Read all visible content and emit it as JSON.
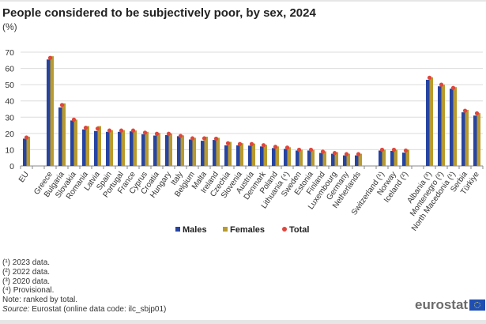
{
  "chart_data": {
    "type": "bar",
    "title": "People considered to be subjectively poor, by sex, 2024",
    "subtitle": "(%)",
    "ylim": [
      0,
      70
    ],
    "yticks": [
      0,
      10,
      20,
      30,
      40,
      50,
      60,
      70
    ],
    "grid": true,
    "legend_position": "bottom",
    "categories": [
      "EU",
      "",
      "Greece",
      "Bulgaria",
      "Slovakia",
      "Romania",
      "Latvia",
      "Spain",
      "Portugal",
      "France",
      "Cyprus",
      "Croatia",
      "Hungary",
      "Italy",
      "Belgium",
      "Malta",
      "Ireland",
      "Czechia",
      "Slovenia",
      "Austria",
      "Denmark",
      "Poland",
      "Lithuania (⁴)",
      "Sweden",
      "Estonia",
      "Finland",
      "Luxembourg",
      "Germany",
      "Netherlands",
      "",
      "Switzerland (¹)",
      "Norway",
      "Iceland (²)",
      "",
      "Albania (³)",
      "Montenegro (²)",
      "North Macedonia (¹)",
      "Serbia",
      "Türkiye"
    ],
    "series": [
      {
        "name": "Males",
        "color": "#2644a0",
        "kind": "bar",
        "values": [
          16.8,
          null,
          65.5,
          36.0,
          28.0,
          22.5,
          21.5,
          21.0,
          21.0,
          21.3,
          19.5,
          18.7,
          19.0,
          18.3,
          16.3,
          15.5,
          16.0,
          12.7,
          12.7,
          12.5,
          12.0,
          11.0,
          10.5,
          9.5,
          9.5,
          8.0,
          7.5,
          6.5,
          6.5,
          null,
          9.5,
          9.3,
          8.2,
          null,
          53.0,
          49.0,
          47.5,
          33.0,
          31.0
        ]
      },
      {
        "name": "Females",
        "color": "#b89a2e",
        "kind": "bar",
        "values": [
          18.0,
          null,
          67.5,
          38.5,
          28.5,
          24.5,
          24.5,
          22.0,
          22.0,
          21.8,
          21.0,
          20.3,
          20.0,
          18.8,
          17.3,
          18.0,
          17.3,
          14.8,
          14.0,
          13.8,
          13.0,
          12.0,
          11.5,
          10.0,
          10.0,
          9.0,
          8.5,
          7.5,
          7.5,
          null,
          10.0,
          10.0,
          10.0,
          null,
          54.5,
          50.0,
          48.5,
          34.5,
          32.5
        ]
      },
      {
        "name": "Total",
        "color": "#e0463c",
        "kind": "point",
        "values": [
          17.5,
          null,
          66.5,
          37.5,
          28.5,
          23.5,
          23.0,
          21.8,
          21.8,
          21.8,
          20.5,
          19.8,
          19.8,
          18.5,
          17.0,
          17.0,
          16.8,
          14.0,
          13.5,
          13.5,
          12.8,
          11.8,
          11.3,
          10.0,
          10.0,
          8.8,
          8.0,
          7.3,
          7.3,
          null,
          10.0,
          10.0,
          9.5,
          null,
          54.3,
          50.0,
          48.0,
          34.0,
          32.4
        ]
      }
    ]
  },
  "footnotes": [
    "(¹) 2023 data.",
    "(²) 2022 data.",
    "(³) 2020 data.",
    "(⁴) Provisional.",
    "Note: ranked by total."
  ],
  "source": {
    "label": "Source:",
    "text": " Eurostat (online data code: ilc_sbjp01)"
  },
  "logo": "eurostat"
}
